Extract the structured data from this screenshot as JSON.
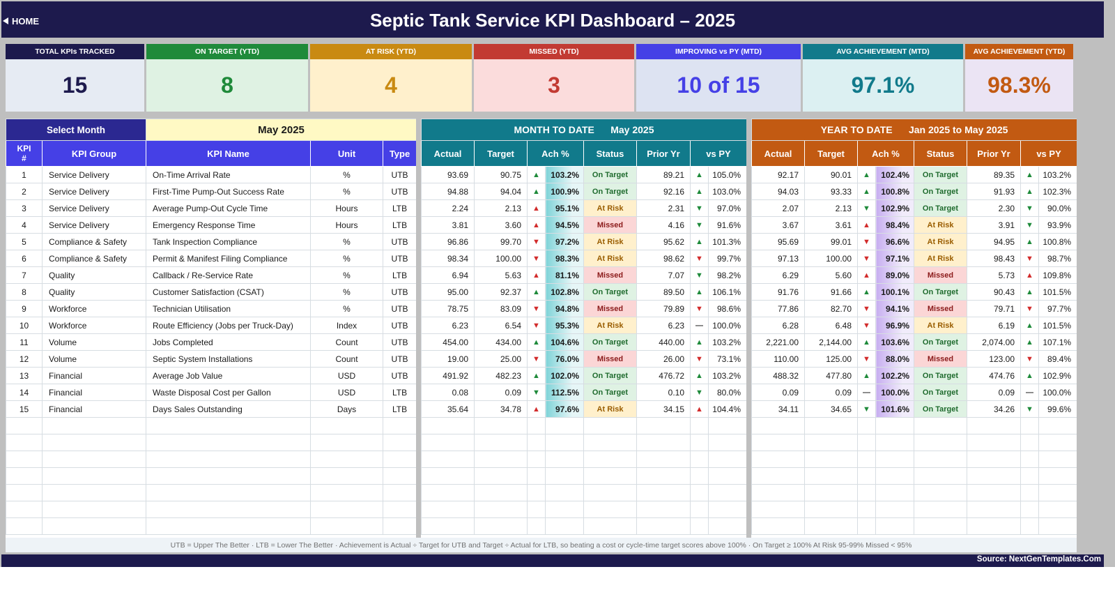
{
  "header": {
    "home_label": "HOME",
    "title": "Septic Tank Service KPI Dashboard   –   2025"
  },
  "cards": [
    {
      "label": "TOTAL KPIs TRACKED",
      "value": "15",
      "head_bg": "#1d1a4d",
      "body_bg": "#e6ebf3",
      "value_color": "#1d1a4d"
    },
    {
      "label": "ON TARGET (YTD)",
      "value": "8",
      "head_bg": "#1f8a3a",
      "body_bg": "#dff2e3",
      "value_color": "#1f8a3a"
    },
    {
      "label": "AT RISK (YTD)",
      "value": "4",
      "head_bg": "#c98a12",
      "body_bg": "#fff0cc",
      "value_color": "#c98a12"
    },
    {
      "label": "MISSED (YTD)",
      "value": "3",
      "head_bg": "#c23a32",
      "body_bg": "#fbdcdc",
      "value_color": "#c23a32"
    },
    {
      "label": "IMPROVING vs PY (MTD)",
      "value": "10 of 15",
      "head_bg": "#4540e6",
      "body_bg": "#dde3f2",
      "value_color": "#4540e6"
    },
    {
      "label": "AVG ACHIEVEMENT (MTD)",
      "value": "97.1%",
      "head_bg": "#117a8b",
      "body_bg": "#dcf0f2",
      "value_color": "#117a8b"
    },
    {
      "label": "AVG ACHIEVEMENT (YTD)",
      "value": "98.3%",
      "head_bg": "#c25a12",
      "body_bg": "#ebe4f4",
      "value_color": "#c25a12"
    }
  ],
  "selector": {
    "label": "Select Month",
    "value": "May 2025"
  },
  "left_headers": [
    "KPI\n#",
    "KPI Group",
    "KPI Name",
    "Unit",
    "Type"
  ],
  "mtd": {
    "title": "MONTH TO DATE",
    "period": "May 2025"
  },
  "ytd": {
    "title": "YEAR TO DATE",
    "period": "Jan 2025  to  May 2025"
  },
  "metric_headers": [
    "Actual",
    "Target",
    "Ach %",
    "Status",
    "Prior Yr",
    "vs PY"
  ],
  "rows": [
    {
      "n": "1",
      "group": "Service Delivery",
      "name": "On-Time Arrival Rate",
      "unit": "%",
      "type": "UTB",
      "m": {
        "actual": "93.69",
        "target": "90.75",
        "ach_dir": "up",
        "ach": "103.2%",
        "status": "On Target",
        "py": "89.21",
        "vs_dir": "up",
        "vs": "105.0%"
      },
      "y": {
        "actual": "92.17",
        "target": "90.01",
        "ach_dir": "up",
        "ach": "102.4%",
        "status": "On Target",
        "py": "89.35",
        "vs_dir": "up",
        "vs": "103.2%"
      }
    },
    {
      "n": "2",
      "group": "Service Delivery",
      "name": "First-Time Pump-Out Success Rate",
      "unit": "%",
      "type": "UTB",
      "m": {
        "actual": "94.88",
        "target": "94.04",
        "ach_dir": "up",
        "ach": "100.9%",
        "status": "On Target",
        "py": "92.16",
        "vs_dir": "up",
        "vs": "103.0%"
      },
      "y": {
        "actual": "94.03",
        "target": "93.33",
        "ach_dir": "up",
        "ach": "100.8%",
        "status": "On Target",
        "py": "91.93",
        "vs_dir": "up",
        "vs": "102.3%"
      }
    },
    {
      "n": "3",
      "group": "Service Delivery",
      "name": "Average Pump-Out Cycle Time",
      "unit": "Hours",
      "type": "LTB",
      "m": {
        "actual": "2.24",
        "target": "2.13",
        "ach_dir": "up-red",
        "ach": "95.1%",
        "status": "At Risk",
        "py": "2.31",
        "vs_dir": "down-green",
        "vs": "97.0%"
      },
      "y": {
        "actual": "2.07",
        "target": "2.13",
        "ach_dir": "down-green",
        "ach": "102.9%",
        "status": "On Target",
        "py": "2.30",
        "vs_dir": "down-green",
        "vs": "90.0%"
      }
    },
    {
      "n": "4",
      "group": "Service Delivery",
      "name": "Emergency Response Time",
      "unit": "Hours",
      "type": "LTB",
      "m": {
        "actual": "3.81",
        "target": "3.60",
        "ach_dir": "up-red",
        "ach": "94.5%",
        "status": "Missed",
        "py": "4.16",
        "vs_dir": "down-green",
        "vs": "91.6%"
      },
      "y": {
        "actual": "3.67",
        "target": "3.61",
        "ach_dir": "up-red",
        "ach": "98.4%",
        "status": "At Risk",
        "py": "3.91",
        "vs_dir": "down-green",
        "vs": "93.9%"
      }
    },
    {
      "n": "5",
      "group": "Compliance & Safety",
      "name": "Tank Inspection Compliance",
      "unit": "%",
      "type": "UTB",
      "m": {
        "actual": "96.86",
        "target": "99.70",
        "ach_dir": "down",
        "ach": "97.2%",
        "status": "At Risk",
        "py": "95.62",
        "vs_dir": "up",
        "vs": "101.3%"
      },
      "y": {
        "actual": "95.69",
        "target": "99.01",
        "ach_dir": "down",
        "ach": "96.6%",
        "status": "At Risk",
        "py": "94.95",
        "vs_dir": "up",
        "vs": "100.8%"
      }
    },
    {
      "n": "6",
      "group": "Compliance & Safety",
      "name": "Permit & Manifest Filing Compliance",
      "unit": "%",
      "type": "UTB",
      "m": {
        "actual": "98.34",
        "target": "100.00",
        "ach_dir": "down",
        "ach": "98.3%",
        "status": "At Risk",
        "py": "98.62",
        "vs_dir": "down",
        "vs": "99.7%"
      },
      "y": {
        "actual": "97.13",
        "target": "100.00",
        "ach_dir": "down",
        "ach": "97.1%",
        "status": "At Risk",
        "py": "98.43",
        "vs_dir": "down",
        "vs": "98.7%"
      }
    },
    {
      "n": "7",
      "group": "Quality",
      "name": "Callback / Re-Service Rate",
      "unit": "%",
      "type": "LTB",
      "m": {
        "actual": "6.94",
        "target": "5.63",
        "ach_dir": "up-red",
        "ach": "81.1%",
        "status": "Missed",
        "py": "7.07",
        "vs_dir": "down-green",
        "vs": "98.2%"
      },
      "y": {
        "actual": "6.29",
        "target": "5.60",
        "ach_dir": "up-red",
        "ach": "89.0%",
        "status": "Missed",
        "py": "5.73",
        "vs_dir": "up-red",
        "vs": "109.8%"
      }
    },
    {
      "n": "8",
      "group": "Quality",
      "name": "Customer Satisfaction (CSAT)",
      "unit": "%",
      "type": "UTB",
      "m": {
        "actual": "95.00",
        "target": "92.37",
        "ach_dir": "up",
        "ach": "102.8%",
        "status": "On Target",
        "py": "89.50",
        "vs_dir": "up",
        "vs": "106.1%"
      },
      "y": {
        "actual": "91.76",
        "target": "91.66",
        "ach_dir": "up",
        "ach": "100.1%",
        "status": "On Target",
        "py": "90.43",
        "vs_dir": "up",
        "vs": "101.5%"
      }
    },
    {
      "n": "9",
      "group": "Workforce",
      "name": "Technician Utilisation",
      "unit": "%",
      "type": "UTB",
      "m": {
        "actual": "78.75",
        "target": "83.09",
        "ach_dir": "down",
        "ach": "94.8%",
        "status": "Missed",
        "py": "79.89",
        "vs_dir": "down",
        "vs": "98.6%"
      },
      "y": {
        "actual": "77.86",
        "target": "82.70",
        "ach_dir": "down",
        "ach": "94.1%",
        "status": "Missed",
        "py": "79.71",
        "vs_dir": "down",
        "vs": "97.7%"
      }
    },
    {
      "n": "10",
      "group": "Workforce",
      "name": "Route Efficiency (Jobs per Truck-Day)",
      "unit": "Index",
      "type": "UTB",
      "m": {
        "actual": "6.23",
        "target": "6.54",
        "ach_dir": "down",
        "ach": "95.3%",
        "status": "At Risk",
        "py": "6.23",
        "vs_dir": "flat",
        "vs": "100.0%"
      },
      "y": {
        "actual": "6.28",
        "target": "6.48",
        "ach_dir": "down",
        "ach": "96.9%",
        "status": "At Risk",
        "py": "6.19",
        "vs_dir": "up",
        "vs": "101.5%"
      }
    },
    {
      "n": "11",
      "group": "Volume",
      "name": "Jobs Completed",
      "unit": "Count",
      "type": "UTB",
      "m": {
        "actual": "454.00",
        "target": "434.00",
        "ach_dir": "up",
        "ach": "104.6%",
        "status": "On Target",
        "py": "440.00",
        "vs_dir": "up",
        "vs": "103.2%"
      },
      "y": {
        "actual": "2,221.00",
        "target": "2,144.00",
        "ach_dir": "up",
        "ach": "103.6%",
        "status": "On Target",
        "py": "2,074.00",
        "vs_dir": "up",
        "vs": "107.1%"
      }
    },
    {
      "n": "12",
      "group": "Volume",
      "name": "Septic System Installations",
      "unit": "Count",
      "type": "UTB",
      "m": {
        "actual": "19.00",
        "target": "25.00",
        "ach_dir": "down",
        "ach": "76.0%",
        "status": "Missed",
        "py": "26.00",
        "vs_dir": "down",
        "vs": "73.1%"
      },
      "y": {
        "actual": "110.00",
        "target": "125.00",
        "ach_dir": "down",
        "ach": "88.0%",
        "status": "Missed",
        "py": "123.00",
        "vs_dir": "down",
        "vs": "89.4%"
      }
    },
    {
      "n": "13",
      "group": "Financial",
      "name": "Average Job Value",
      "unit": "USD",
      "type": "UTB",
      "m": {
        "actual": "491.92",
        "target": "482.23",
        "ach_dir": "up",
        "ach": "102.0%",
        "status": "On Target",
        "py": "476.72",
        "vs_dir": "up",
        "vs": "103.2%"
      },
      "y": {
        "actual": "488.32",
        "target": "477.80",
        "ach_dir": "up",
        "ach": "102.2%",
        "status": "On Target",
        "py": "474.76",
        "vs_dir": "up",
        "vs": "102.9%"
      }
    },
    {
      "n": "14",
      "group": "Financial",
      "name": "Waste Disposal Cost per Gallon",
      "unit": "USD",
      "type": "LTB",
      "m": {
        "actual": "0.08",
        "target": "0.09",
        "ach_dir": "down-green",
        "ach": "112.5%",
        "status": "On Target",
        "py": "0.10",
        "vs_dir": "down-green",
        "vs": "80.0%"
      },
      "y": {
        "actual": "0.09",
        "target": "0.09",
        "ach_dir": "flat",
        "ach": "100.0%",
        "status": "On Target",
        "py": "0.09",
        "vs_dir": "flat",
        "vs": "100.0%"
      }
    },
    {
      "n": "15",
      "group": "Financial",
      "name": "Days Sales Outstanding",
      "unit": "Days",
      "type": "LTB",
      "m": {
        "actual": "35.64",
        "target": "34.78",
        "ach_dir": "up-red",
        "ach": "97.6%",
        "status": "At Risk",
        "py": "34.15",
        "vs_dir": "up-red",
        "vs": "104.4%"
      },
      "y": {
        "actual": "34.11",
        "target": "34.65",
        "ach_dir": "down-green",
        "ach": "101.6%",
        "status": "On Target",
        "py": "34.26",
        "vs_dir": "down-green",
        "vs": "99.6%"
      }
    }
  ],
  "legend": "UTB = Upper The Better   ·   LTB = Lower The Better   ·   Achievement is Actual ÷ Target for UTB and Target ÷ Actual for LTB, so beating a cost or cycle-time target scores above 100%   ·   On Target ≥ 100%     At Risk 95-99%     Missed < 95%",
  "source": "Source: NextGenTemplates.Com"
}
